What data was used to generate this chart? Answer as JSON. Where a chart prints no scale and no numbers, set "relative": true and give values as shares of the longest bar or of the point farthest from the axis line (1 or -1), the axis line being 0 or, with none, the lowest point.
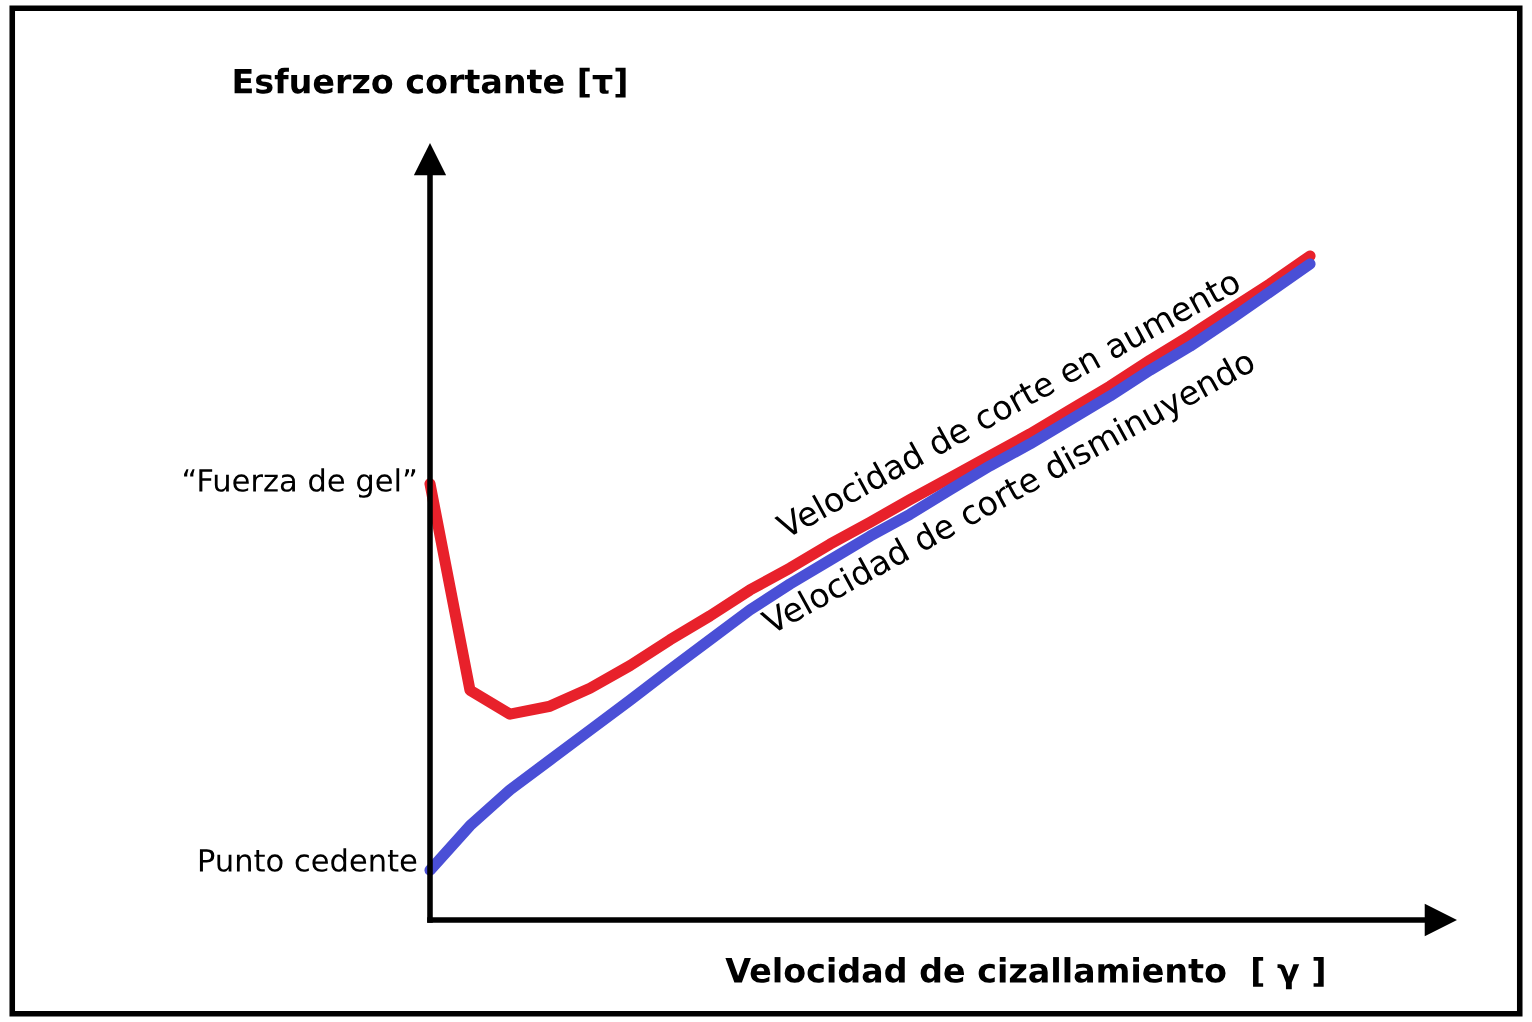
{
  "chart_data": {
    "type": "line",
    "relative": true,
    "xlabel": "Velocidad de cizallamiento  [ γ ]",
    "ylabel": "Esfuerzo cortante [τ]",
    "categories": [
      null,
      null,
      null,
      null,
      null,
      null,
      null,
      null,
      null,
      null,
      null,
      null,
      null,
      null,
      null,
      null,
      null,
      null,
      null,
      null,
      null,
      null,
      null
    ],
    "series": [
      {
        "name": "Velocidad de corte en aumento",
        "color": "#e8212b",
        "values": [
          0.657,
          0.346,
          0.31,
          0.322,
          0.349,
          0.383,
          0.422,
          0.458,
          0.497,
          0.53,
          0.566,
          0.599,
          0.633,
          0.666,
          0.699,
          0.732,
          0.768,
          0.804,
          0.843,
          0.88,
          0.919,
          0.958,
          1
        ]
      },
      {
        "name": "Velocidad de corte disminuyendo",
        "color": "#4a4fd6",
        "values": [
          0.075,
          0.142,
          0.196,
          0.241,
          0.286,
          0.331,
          0.377,
          0.422,
          0.467,
          0.506,
          0.542,
          0.578,
          0.611,
          0.648,
          0.684,
          0.717,
          0.753,
          0.789,
          0.828,
          0.864,
          0.904,
          0.946,
          0.988
        ]
      }
    ],
    "annotations": [
      "“Fuerza de gel”",
      "Punto cedente"
    ],
    "marker": "none",
    "line_style": "solid"
  }
}
